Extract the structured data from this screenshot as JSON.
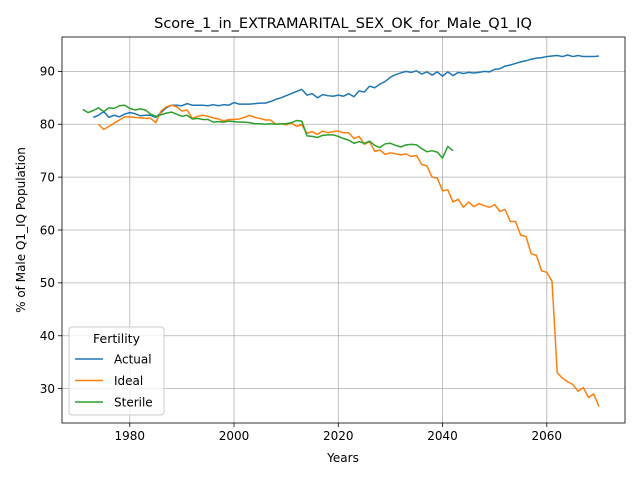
{
  "chart_data": {
    "type": "line",
    "title": "Score_1_in_EXTRAMARITAL_SEX_OK_for_Male_Q1_IQ",
    "xlabel": "Years",
    "ylabel": "% of Male Q1_IQ Population",
    "xlim": [
      1967,
      2075
    ],
    "ylim": [
      23.5,
      96.5
    ],
    "xticks": [
      1980,
      2000,
      2020,
      2040,
      2060
    ],
    "yticks": [
      30,
      40,
      50,
      60,
      70,
      80,
      90
    ],
    "grid": true,
    "legend": {
      "title": "Fertility",
      "placement": "lower-left"
    },
    "series": [
      {
        "name": "Actual",
        "color": "#1f77b4",
        "x": [
          1973,
          1974,
          1975,
          1976,
          1977,
          1978,
          1979,
          1980,
          1981,
          1982,
          1983,
          1984,
          1985,
          1986,
          1987,
          1988,
          1989,
          1990,
          1991,
          1992,
          1993,
          1994,
          1995,
          1996,
          1997,
          1998,
          1999,
          2000,
          2001,
          2002,
          2003,
          2004,
          2005,
          2006,
          2007,
          2008,
          2009,
          2010,
          2011,
          2012,
          2013,
          2014,
          2015,
          2016,
          2017,
          2018,
          2019,
          2020,
          2021,
          2022,
          2023,
          2024,
          2025,
          2026,
          2027,
          2028,
          2029,
          2030,
          2031,
          2032,
          2033,
          2034,
          2035,
          2036,
          2037,
          2038,
          2039,
          2040,
          2041,
          2042,
          2043,
          2044,
          2045,
          2046,
          2047,
          2048,
          2049,
          2050,
          2051,
          2052,
          2053,
          2054,
          2055,
          2056,
          2057,
          2058,
          2059,
          2060,
          2061,
          2062,
          2063,
          2064,
          2065,
          2066,
          2067,
          2068,
          2069,
          2070
        ],
        "y": [
          81.3,
          81.7,
          82.4,
          81.3,
          81.7,
          81.4,
          81.9,
          82.2,
          82.0,
          81.6,
          81.7,
          81.7,
          81.3,
          82.2,
          83.1,
          83.6,
          83.6,
          83.5,
          83.9,
          83.6,
          83.6,
          83.6,
          83.5,
          83.7,
          83.5,
          83.7,
          83.6,
          84.1,
          83.8,
          83.8,
          83.8,
          83.9,
          84.0,
          84.0,
          84.3,
          84.7,
          85.0,
          85.4,
          85.8,
          86.2,
          86.6,
          85.5,
          85.8,
          85.0,
          85.6,
          85.4,
          85.3,
          85.5,
          85.3,
          85.8,
          85.2,
          86.3,
          86.1,
          87.2,
          86.9,
          87.6,
          88.1,
          88.9,
          89.4,
          89.7,
          90.0,
          89.8,
          90.1,
          89.5,
          89.9,
          89.3,
          89.9,
          89.1,
          89.9,
          89.2,
          89.8,
          89.6,
          89.8,
          89.7,
          89.8,
          90.0,
          89.9,
          90.4,
          90.5,
          91.0,
          91.2,
          91.5,
          91.8,
          92.0,
          92.3,
          92.5,
          92.6,
          92.8,
          92.9,
          93.0,
          92.8,
          93.1,
          92.8,
          93.0,
          92.8,
          92.8,
          92.8,
          92.9
        ]
      },
      {
        "name": "Ideal",
        "color": "#ff7f0e",
        "x": [
          1974,
          1975,
          1976,
          1977,
          1978,
          1979,
          1980,
          1981,
          1982,
          1983,
          1984,
          1985,
          1986,
          1987,
          1988,
          1989,
          1990,
          1991,
          1992,
          1993,
          1994,
          1995,
          1996,
          1997,
          1998,
          1999,
          2000,
          2001,
          2002,
          2003,
          2004,
          2005,
          2006,
          2007,
          2008,
          2009,
          2010,
          2011,
          2012,
          2013,
          2014,
          2015,
          2016,
          2017,
          2018,
          2019,
          2020,
          2021,
          2022,
          2023,
          2024,
          2025,
          2026,
          2027,
          2028,
          2029,
          2030,
          2031,
          2032,
          2033,
          2034,
          2035,
          2036,
          2037,
          2038,
          2039,
          2040,
          2041,
          2042,
          2043,
          2044,
          2045,
          2046,
          2047,
          2048,
          2049,
          2050,
          2051,
          2052,
          2053,
          2054,
          2055,
          2056,
          2057,
          2058,
          2059,
          2060,
          2061,
          2062,
          2063,
          2064,
          2065,
          2066,
          2067,
          2068,
          2069,
          2070
        ],
        "y": [
          80.0,
          79.0,
          79.6,
          80.2,
          80.8,
          81.4,
          81.4,
          81.3,
          81.2,
          81.1,
          81.1,
          80.3,
          82.5,
          83.3,
          83.6,
          83.3,
          82.5,
          82.7,
          81.1,
          81.5,
          81.7,
          81.5,
          81.2,
          81.0,
          80.6,
          80.9,
          80.9,
          81.0,
          81.3,
          81.7,
          81.3,
          81.1,
          80.8,
          80.8,
          80.0,
          80.1,
          79.9,
          80.2,
          79.6,
          79.9,
          78.3,
          78.6,
          78.1,
          78.7,
          78.4,
          78.6,
          78.7,
          78.4,
          78.4,
          77.3,
          77.7,
          76.2,
          76.7,
          74.9,
          75.1,
          74.3,
          74.6,
          74.4,
          74.2,
          74.4,
          73.9,
          74.1,
          72.4,
          72.1,
          70.0,
          69.8,
          67.4,
          67.6,
          65.3,
          65.8,
          64.3,
          65.3,
          64.4,
          65.0,
          64.6,
          64.3,
          64.8,
          63.5,
          63.9,
          61.6,
          61.6,
          59.0,
          58.8,
          55.5,
          55.2,
          52.3,
          52.0,
          50.3,
          33.0,
          32.0,
          31.3,
          30.8,
          29.5,
          30.2,
          28.3,
          29.0,
          26.6
        ]
      },
      {
        "name": "Sterile",
        "color": "#2ca02c",
        "x": [
          1971,
          1972,
          1973,
          1974,
          1975,
          1976,
          1977,
          1978,
          1979,
          1980,
          1981,
          1982,
          1983,
          1984,
          1985,
          1986,
          1987,
          1988,
          1989,
          1990,
          1991,
          1992,
          1993,
          1994,
          1995,
          1996,
          1997,
          1998,
          1999,
          2000,
          2001,
          2002,
          2003,
          2004,
          2005,
          2006,
          2007,
          2008,
          2009,
          2010,
          2011,
          2012,
          2013,
          2014,
          2015,
          2016,
          2017,
          2018,
          2019,
          2020,
          2021,
          2022,
          2023,
          2024,
          2025,
          2026,
          2027,
          2028,
          2029,
          2030,
          2031,
          2032,
          2033,
          2034,
          2035,
          2036,
          2037,
          2038,
          2039,
          2040,
          2041,
          2042
        ],
        "y": [
          82.8,
          82.2,
          82.6,
          83.1,
          82.4,
          83.1,
          83.0,
          83.5,
          83.6,
          83.0,
          82.7,
          82.9,
          82.7,
          81.9,
          81.5,
          81.8,
          82.1,
          82.3,
          81.9,
          81.5,
          81.7,
          81.0,
          81.1,
          80.9,
          80.9,
          80.4,
          80.5,
          80.4,
          80.6,
          80.5,
          80.4,
          80.4,
          80.3,
          80.1,
          80.1,
          80.0,
          80.1,
          80.0,
          80.1,
          80.1,
          80.3,
          80.7,
          80.6,
          77.8,
          77.7,
          77.5,
          77.9,
          78.0,
          78.0,
          77.7,
          77.3,
          77.0,
          76.4,
          76.7,
          76.4,
          76.8,
          76.0,
          75.6,
          76.3,
          76.4,
          76.0,
          75.7,
          76.1,
          76.2,
          76.1,
          75.4,
          74.8,
          75.0,
          74.7,
          73.6,
          75.8,
          75.0
        ]
      }
    ]
  }
}
